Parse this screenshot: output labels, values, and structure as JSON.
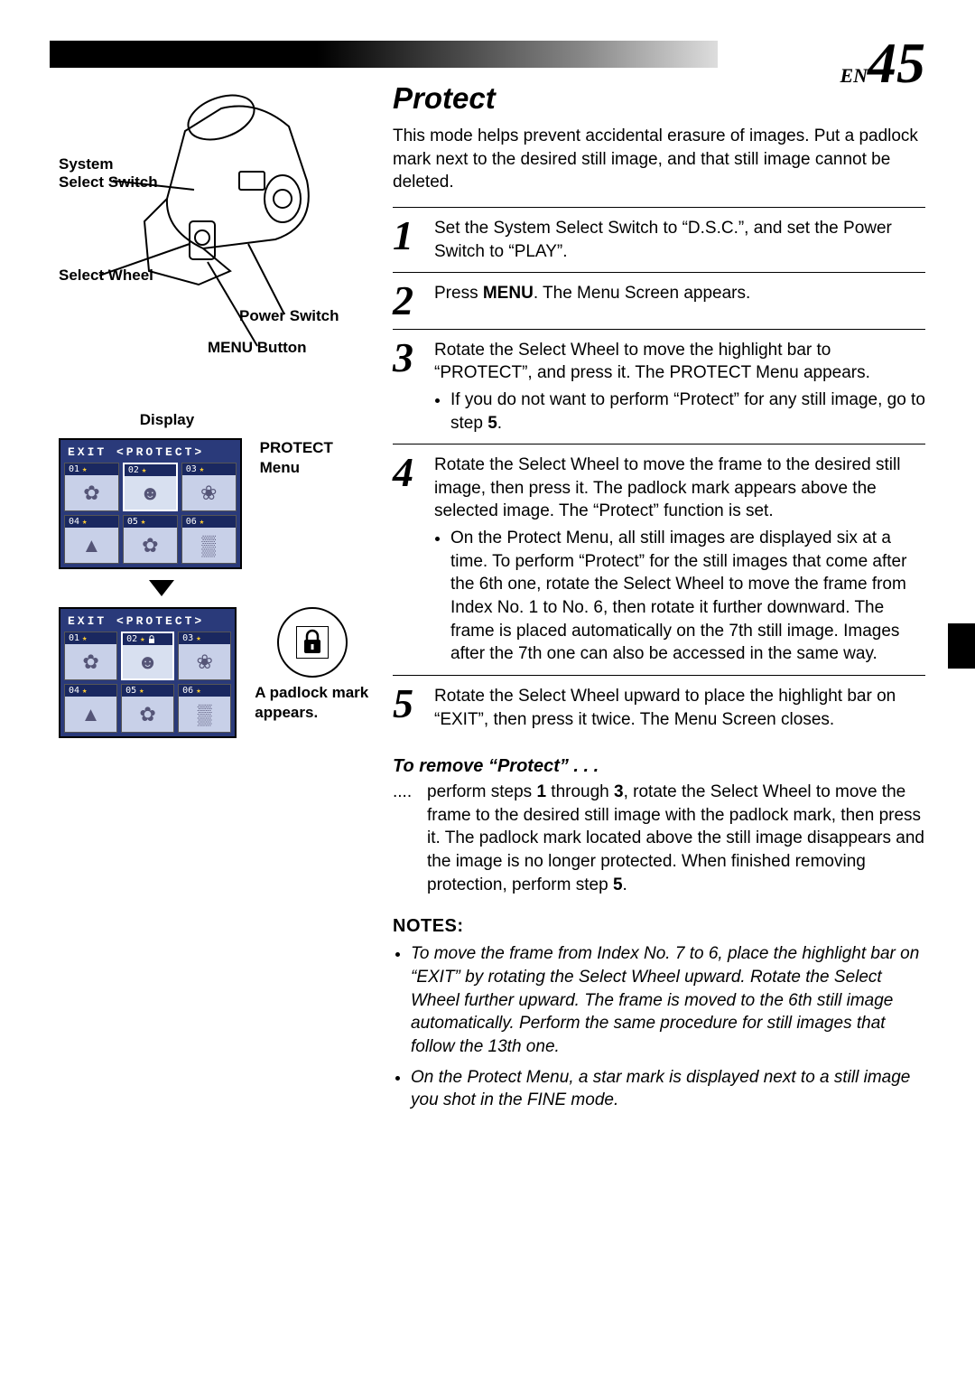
{
  "page": {
    "lang_prefix": "EN",
    "number": "45"
  },
  "camera": {
    "labels": {
      "system_select": "System\nSelect Switch",
      "select_wheel": "Select Wheel",
      "power_switch": "Power Switch",
      "menu_button": "MENU Button"
    }
  },
  "display": {
    "label": "Display",
    "protect_menu_label": "PROTECT Menu",
    "padlock_caption": "A padlock mark appears.",
    "screen_header": "EXIT  <PROTECT>",
    "thumbs": [
      "01",
      "02",
      "03",
      "04",
      "05",
      "06"
    ],
    "selected_first": 1,
    "locked_in_second": 1
  },
  "section": {
    "title": "Protect",
    "intro": "This mode helps prevent accidental erasure of images. Put a padlock mark next to the desired still image, and that still image cannot be deleted."
  },
  "steps": [
    {
      "n": "1",
      "body": "Set the System Select Switch to “D.S.C.”, and set the Power Switch to “PLAY”.",
      "bullets": []
    },
    {
      "n": "2",
      "body_html": "Press <b>MENU</b>. The Menu Screen appears.",
      "bullets": []
    },
    {
      "n": "3",
      "body": "Rotate the Select Wheel to move the highlight bar to “PROTECT”, and press it. The PROTECT Menu appears.",
      "bullets": [
        "If you do not want to perform “Protect” for any still image, go to step <b>5</b>."
      ]
    },
    {
      "n": "4",
      "body": "Rotate the Select Wheel to move the frame to the desired still image, then press it. The padlock mark appears above the selected image. The “Protect” function is set.",
      "bullets": [
        "On the Protect Menu, all still images are displayed six at a time. To perform “Protect” for the still images that come after the 6th one, rotate the Select Wheel to move the frame from Index No. 1 to No. 6, then rotate it further downward. The frame is placed automatically on the 7th still image. Images after the 7th one can also be accessed in the same way."
      ]
    },
    {
      "n": "5",
      "body": "Rotate the Select Wheel upward to place the highlight bar on “EXIT”, then press it twice. The Menu Screen closes.",
      "bullets": []
    }
  ],
  "remove": {
    "heading": "To remove “Protect” . . .",
    "dots": "....",
    "body_html": "perform steps <b>1</b> through <b>3</b>, rotate the Select Wheel to move the frame to the desired still image with the padlock mark, then press it. The padlock mark located above the still image disappears and the image is no longer protected. When finished removing protection, perform step <b>5</b>."
  },
  "notes": {
    "heading": "NOTES:",
    "items": [
      "To move the frame from Index No. 7 to 6, place the highlight bar on “EXIT” by rotating the Select Wheel upward. Rotate the Select Wheel further upward. The frame is moved to the 6th still image automatically. Perform the same procedure for still images that follow the 13th one.",
      "On the Protect Menu, a star mark is displayed next to a still image you shot in the FINE mode."
    ]
  },
  "colors": {
    "screen_bg": "#2a3a7a",
    "thumb_bg": "#c8d0e8",
    "star": "#ffcc33",
    "text": "#000000"
  }
}
